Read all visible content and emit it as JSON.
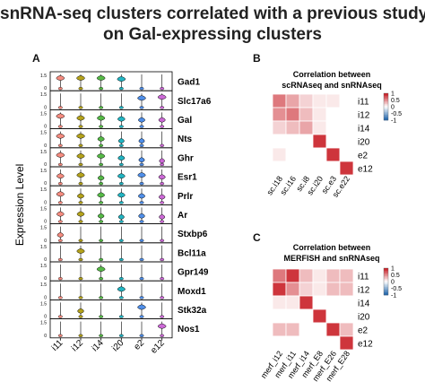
{
  "title_lines": [
    "snRNA-seq clusters correlated with a previous study",
    "on Gal-expressing clusters"
  ],
  "panels": {
    "a": {
      "letter": "A"
    },
    "b": {
      "letter": "B",
      "title_lines": [
        "Correlation between",
        "scRNAseq and snRNAseq"
      ]
    },
    "c": {
      "letter": "C",
      "title_lines": [
        "Correlation between",
        "MERFISH and snRNAseq"
      ]
    }
  },
  "chart_data": [
    {
      "type": "violin",
      "ylabel": "Expression Level",
      "categories": [
        "i11",
        "i12",
        "i14",
        "i20",
        "e2",
        "e12"
      ],
      "tick_labels": [
        "0",
        "1.5"
      ],
      "genes": [
        "Gad1",
        "Slc17a6",
        "Gal",
        "Nts",
        "Ghr",
        "Esr1",
        "Prlr",
        "Ar",
        "Stxbp6",
        "Bcl11a",
        "Gpr149",
        "Moxd1",
        "Stk32a",
        "Nos1"
      ],
      "colors": {
        "i11": "#f48b7f",
        "i12": "#b4a21b",
        "i14": "#55b946",
        "i20": "#22b4c2",
        "e2": "#4f8ee8",
        "e12": "#cc69d6"
      },
      "median_expression": [
        [
          1.1,
          1.1,
          1.1,
          1.0,
          0.0,
          0.0
        ],
        [
          0.0,
          0.0,
          0.0,
          0.0,
          1.0,
          1.1
        ],
        [
          1.1,
          0.9,
          0.9,
          0.8,
          0.7,
          0.7
        ],
        [
          1.0,
          1.0,
          0.7,
          0.5,
          0.5,
          0.0
        ],
        [
          1.0,
          0.9,
          0.9,
          0.7,
          0.5,
          0.4
        ],
        [
          0.8,
          0.9,
          0.6,
          0.8,
          0.9,
          0.7
        ],
        [
          0.9,
          0.7,
          0.8,
          0.8,
          0.7,
          0.6
        ],
        [
          0.8,
          0.8,
          0.6,
          0.5,
          0.6,
          0.5
        ],
        [
          0.6,
          0.0,
          0.0,
          0.0,
          0.0,
          0.0
        ],
        [
          0.0,
          0.9,
          0.0,
          0.0,
          0.0,
          0.0
        ],
        [
          0.0,
          0.0,
          1.0,
          0.0,
          0.0,
          0.0
        ],
        [
          0.0,
          0.0,
          0.0,
          0.9,
          0.0,
          0.0
        ],
        [
          0.0,
          0.6,
          0.0,
          0.0,
          1.0,
          0.0
        ],
        [
          0.0,
          0.0,
          0.0,
          0.0,
          0.0,
          1.0
        ]
      ]
    },
    {
      "type": "heatmap",
      "panel": "B",
      "rows": [
        "i11",
        "i12",
        "i14",
        "i20",
        "e2",
        "e12"
      ],
      "cols": [
        "sc.i18",
        "sc.i16",
        "sc.i8",
        "sc.i20",
        "sc.e3",
        "sc.e22"
      ],
      "values": [
        [
          0.6,
          0.4,
          0.2,
          0.1,
          0.1,
          0.0
        ],
        [
          0.5,
          0.6,
          0.3,
          0.1,
          0.0,
          0.0
        ],
        [
          0.2,
          0.3,
          0.4,
          0.1,
          0.0,
          0.0
        ],
        [
          0.0,
          0.0,
          0.0,
          0.9,
          0.0,
          0.0
        ],
        [
          0.1,
          0.0,
          0.0,
          0.0,
          0.9,
          0.0
        ],
        [
          0.0,
          0.0,
          0.0,
          0.0,
          0.0,
          0.9
        ]
      ],
      "legend_ticks": [
        "1",
        "0.5",
        "0",
        "-0.5",
        "-1"
      ],
      "scale": [
        -1,
        1
      ]
    },
    {
      "type": "heatmap",
      "panel": "C",
      "rows": [
        "i11",
        "i12",
        "i14",
        "i20",
        "e2",
        "e12"
      ],
      "cols": [
        "merf_i12",
        "merf_i11",
        "merf_i14",
        "merf_E8",
        "merf_E26",
        "merf_E28"
      ],
      "col_labels": [
        "merf_i12",
        "merf_i11",
        "merf_i14",
        "merf_E8",
        "merf_E26",
        "merf_E28"
      ],
      "values": [
        [
          0.6,
          0.9,
          0.3,
          0.1,
          0.3,
          0.3
        ],
        [
          0.9,
          0.5,
          0.2,
          0.1,
          0.3,
          0.3
        ],
        [
          0.1,
          0.1,
          0.9,
          0.0,
          0.0,
          0.0
        ],
        [
          0.0,
          0.0,
          0.0,
          0.9,
          0.0,
          0.0
        ],
        [
          0.3,
          0.3,
          0.0,
          0.0,
          0.9,
          0.3
        ],
        [
          0.0,
          0.0,
          0.0,
          0.0,
          0.0,
          0.9
        ]
      ],
      "legend_ticks": [
        "1",
        "0.5",
        "0",
        "-0.5",
        "-1"
      ],
      "scale": [
        -1,
        1
      ]
    }
  ]
}
